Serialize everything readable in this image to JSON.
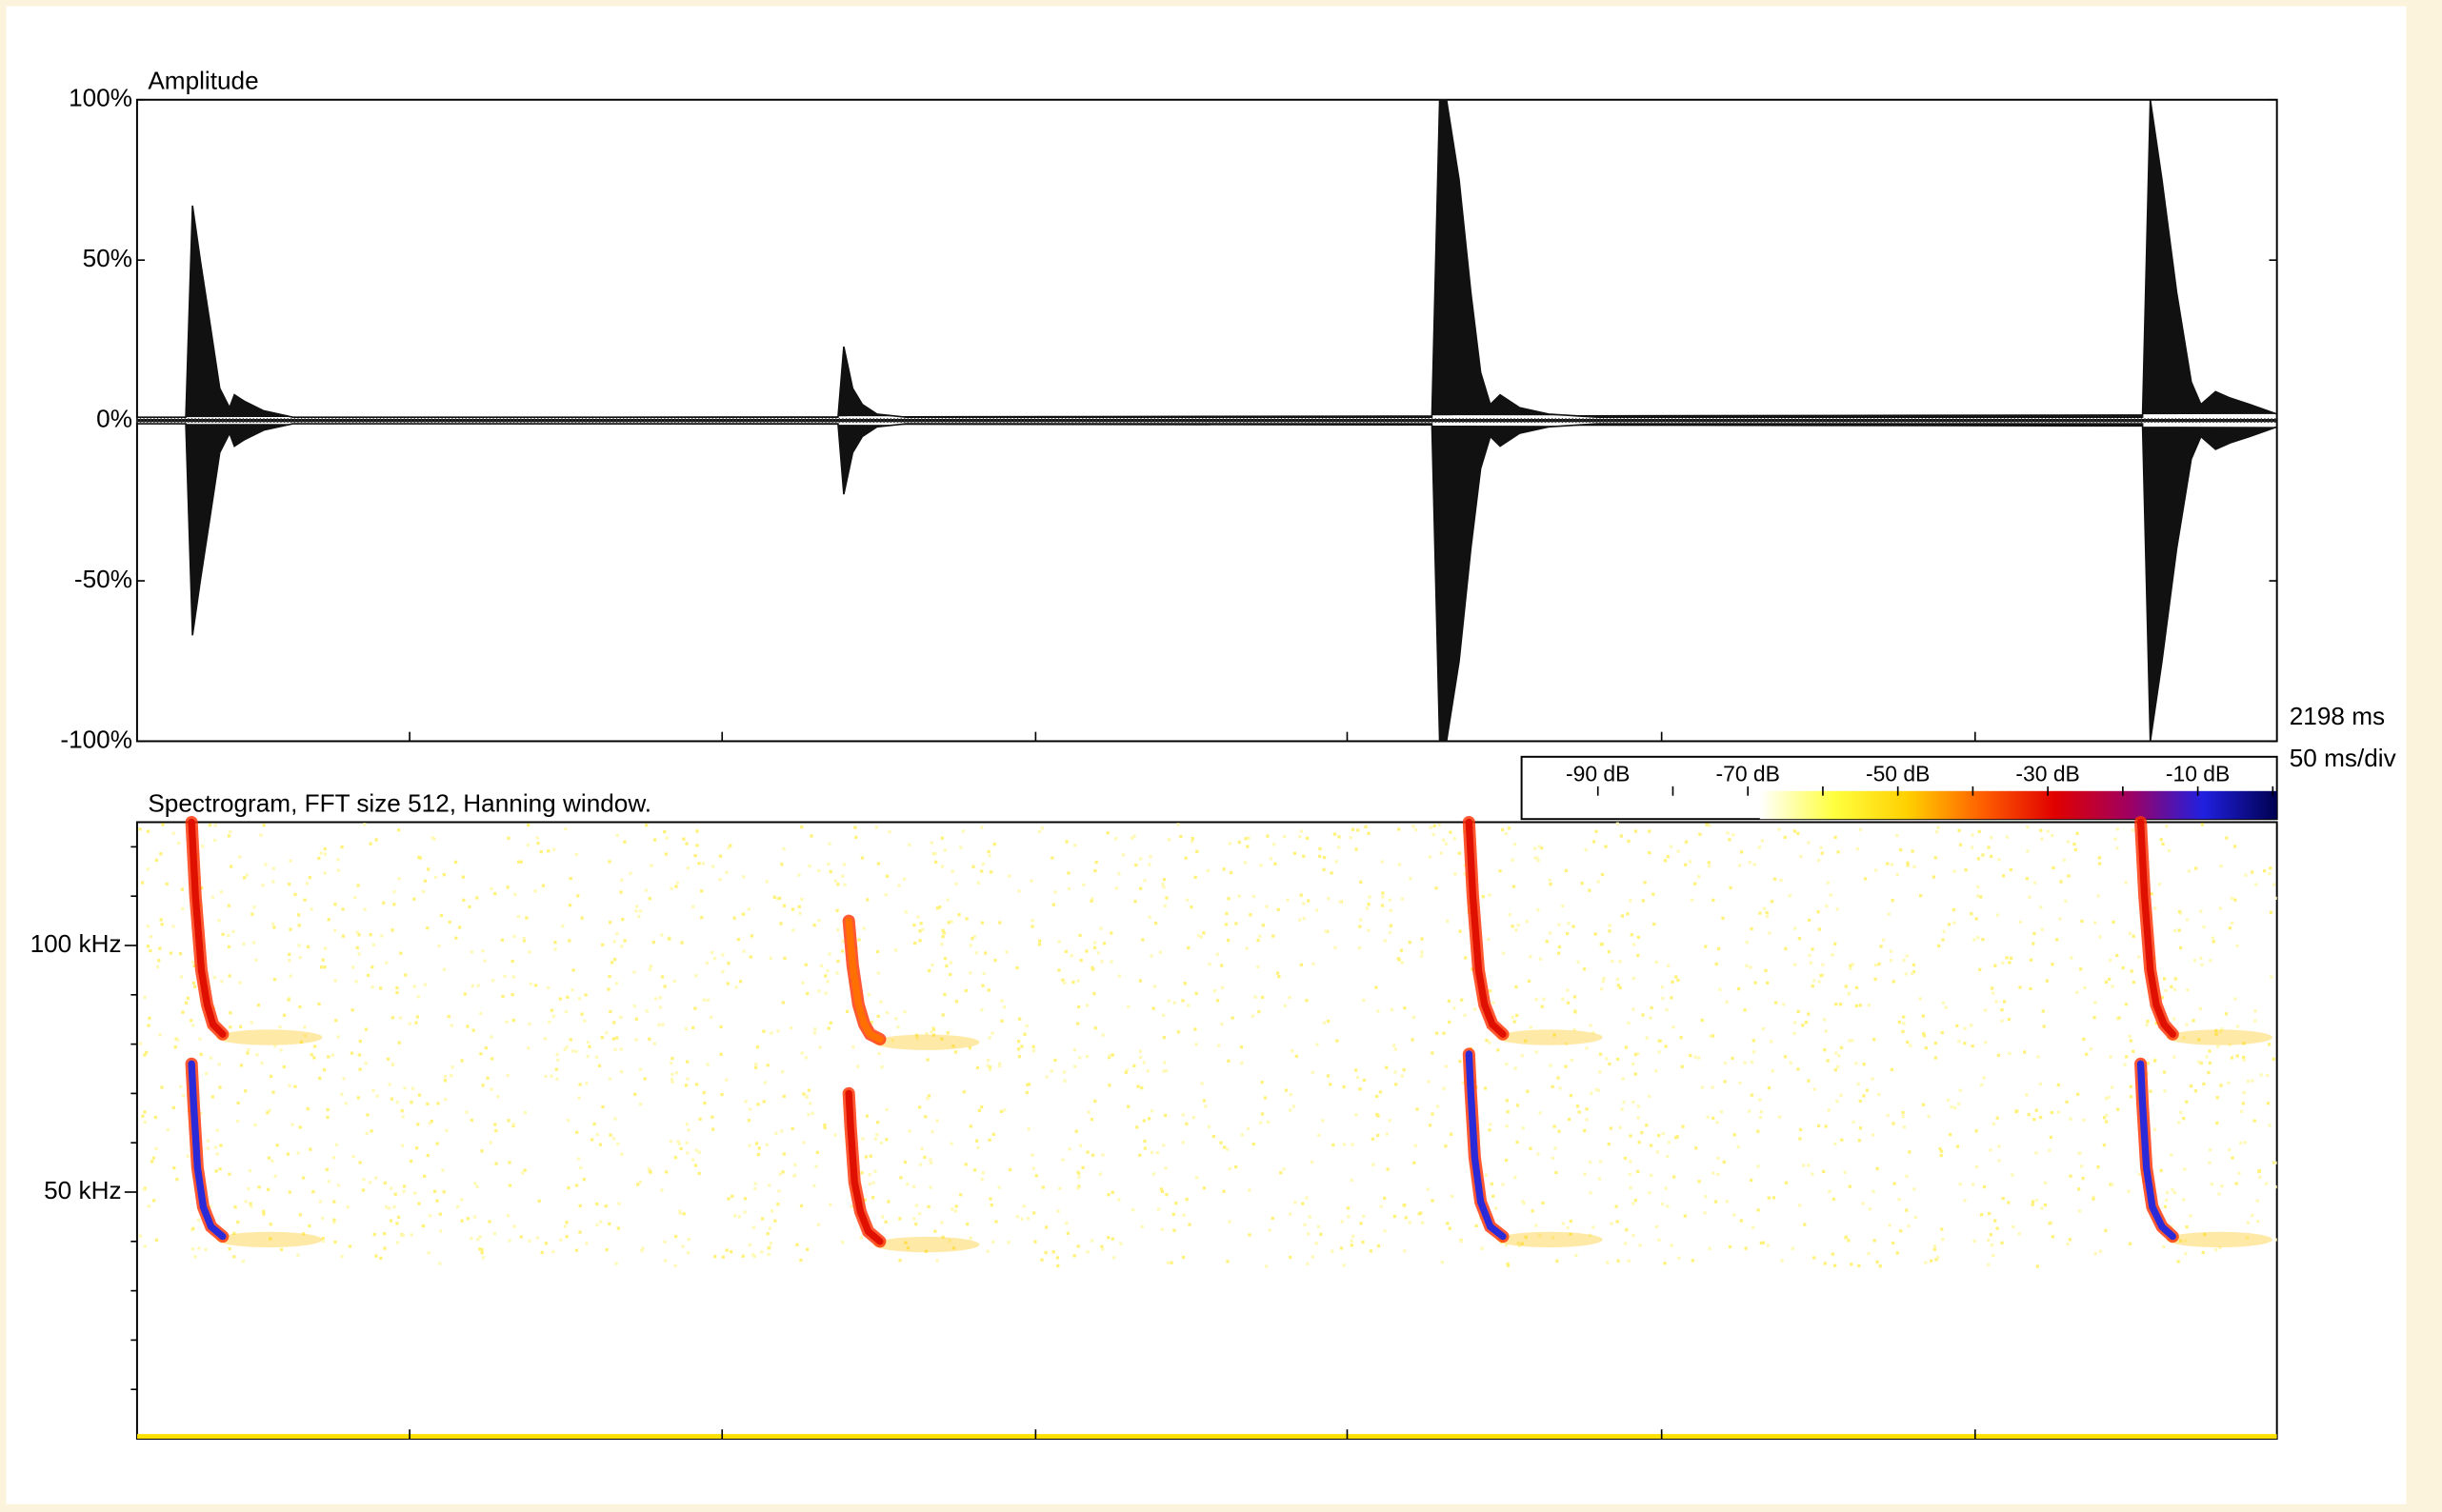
{
  "chart_data": [
    {
      "type": "waveform",
      "y_label": "Amplitude",
      "time_label": "2198 ms",
      "scale_label": "50 ms/div",
      "xlim": [
        0,
        2198
      ],
      "xticks": [
        280,
        601,
        923,
        1243,
        1566,
        1888
      ],
      "ylim": [
        -100,
        100
      ],
      "yticks": [
        {
          "value": 100,
          "label": "100%"
        },
        {
          "value": 50,
          "label": "50%"
        },
        {
          "value": 0,
          "label": "0%"
        },
        {
          "value": -50,
          "label": "-50%"
        },
        {
          "value": -100,
          "label": "-100%"
        }
      ],
      "color": "#111111",
      "x": [
        0,
        50,
        57,
        65,
        75,
        85,
        95,
        100,
        110,
        130,
        160,
        715,
        720,
        726,
        735,
        745,
        760,
        790,
        1330,
        1338,
        1345,
        1358,
        1370,
        1380,
        1390,
        1400,
        1420,
        1450,
        1500,
        2060,
        2068,
        2080,
        2095,
        2110,
        2120,
        2135,
        2150,
        2170,
        2198
      ],
      "values": [
        1,
        1,
        67,
        50,
        30,
        10,
        4,
        8,
        6,
        3,
        1,
        1,
        1,
        23,
        10,
        5,
        2,
        1,
        1,
        100,
        100,
        75,
        40,
        15,
        5,
        8,
        4,
        2,
        1,
        1,
        100,
        75,
        40,
        12,
        5,
        9,
        7,
        5,
        2
      ]
    },
    {
      "type": "spectrogram",
      "title": "Spectrogram, FFT size 512, Hanning window.",
      "xlim": [
        0,
        2198
      ],
      "xticks": [
        280,
        601,
        923,
        1243,
        1566,
        1888
      ],
      "ylim": [
        0,
        125
      ],
      "yticks": [
        {
          "value": 100,
          "label": "100 kHz"
        },
        {
          "value": 50,
          "label": "50 kHz"
        }
      ],
      "yminorticks": [
        10,
        20,
        30,
        40,
        60,
        70,
        80,
        90,
        110,
        120
      ],
      "colorbar": {
        "labels": [
          "-90 dB",
          "-70 dB",
          "-50 dB",
          "-30 dB",
          "-10 dB"
        ],
        "colors": [
          "#ffffff",
          "#ffff40",
          "#ffd000",
          "#ff6000",
          "#e00000",
          "#a00060",
          "#2020e0",
          "#000050"
        ]
      },
      "series": [
        {
          "color": "#e01000",
          "x": [
            56,
            60,
            66,
            72,
            78,
            88
          ],
          "values": [
            125,
            110,
            95,
            88,
            84,
            82
          ]
        },
        {
          "color": "#2a2ad8",
          "x": [
            56,
            58,
            62,
            68,
            76,
            88
          ],
          "values": [
            76,
            68,
            55,
            47,
            43,
            41
          ]
        },
        {
          "color": "#ff7000",
          "x": [
            731,
            735,
            741,
            747,
            753,
            763
          ],
          "values": [
            105,
            96,
            88,
            84,
            82,
            81
          ]
        },
        {
          "color": "#e01000",
          "x": [
            731,
            733,
            737,
            743,
            751,
            763
          ],
          "values": [
            70,
            63,
            52,
            46,
            42,
            40
          ]
        },
        {
          "color": "#e01000",
          "x": [
            1368,
            1372,
            1378,
            1384,
            1392,
            1403
          ],
          "values": [
            125,
            110,
            95,
            88,
            84,
            82
          ]
        },
        {
          "color": "#2a2ad8",
          "x": [
            1368,
            1370,
            1374,
            1380,
            1390,
            1403
          ],
          "values": [
            78,
            70,
            57,
            48,
            43,
            41
          ]
        },
        {
          "color": "#e01000",
          "x": [
            2058,
            2062,
            2068,
            2074,
            2082,
            2091
          ],
          "values": [
            125,
            110,
            95,
            88,
            84,
            82
          ]
        },
        {
          "color": "#2a2ad8",
          "x": [
            2058,
            2060,
            2064,
            2070,
            2080,
            2091
          ],
          "values": [
            76,
            68,
            55,
            47,
            43,
            41
          ]
        }
      ]
    }
  ]
}
